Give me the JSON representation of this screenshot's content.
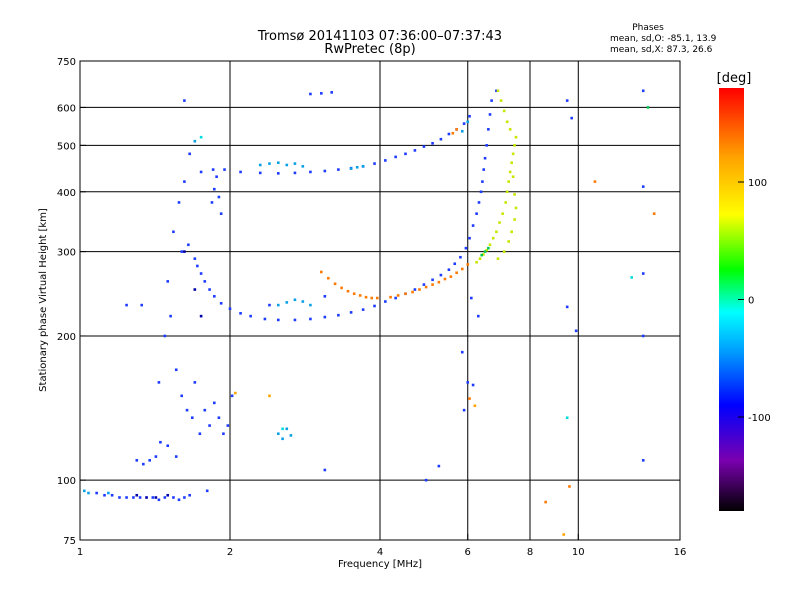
{
  "header": {
    "title_line1": "Tromsø 20141103 07:36:00–07:37:43",
    "title_line2": "RwPretec (8p)",
    "stats_heading": "Phases",
    "stats_o": "mean, sd,O: -85.1, 13.9",
    "stats_x": "mean, sd,X:  87.3, 26.6"
  },
  "chart_data": {
    "type": "scatter",
    "title": "Tromsø 20141103 07:36:00–07:37:43",
    "subtitle": "RwPretec (8p)",
    "xlabel": "Frequency [MHz]",
    "ylabel": "Stationary phase Virtual Height [km]",
    "x_scale": "log",
    "y_scale": "log",
    "xlim": [
      1,
      16
    ],
    "ylim": [
      75,
      750
    ],
    "x_ticks": [
      1,
      2,
      4,
      6,
      8,
      10,
      16
    ],
    "x_tick_labels": [
      "1",
      "2",
      "4",
      "6",
      "8",
      "10",
      "16"
    ],
    "x_gridlines": [
      2,
      4,
      6,
      8,
      10
    ],
    "y_ticks": [
      75,
      100,
      200,
      300,
      400,
      500,
      600,
      750
    ],
    "y_tick_labels": [
      "75",
      "100",
      "200",
      "300",
      "400",
      "500",
      "600",
      "750"
    ],
    "y_gridlines": [
      100,
      200,
      300,
      400,
      500,
      600
    ],
    "grid": true,
    "colorbar": {
      "label": "[deg]",
      "min": -180,
      "max": 180,
      "ticks": [
        100,
        0,
        -100
      ],
      "tick_labels": [
        "100",
        "0",
        "-100"
      ],
      "colors": [
        "#000000",
        "#7a00b0",
        "#0000ff",
        "#00a0ff",
        "#00ffff",
        "#00ff00",
        "#ffff00",
        "#ffa000",
        "#ff0000"
      ]
    },
    "series": [
      {
        "color": "#1e3cff",
        "points": [
          [
            1.08,
            94
          ],
          [
            1.12,
            93
          ],
          [
            1.16,
            93
          ],
          [
            1.2,
            92
          ],
          [
            1.24,
            92
          ],
          [
            1.28,
            92
          ],
          [
            1.32,
            92
          ],
          [
            1.4,
            92
          ],
          [
            1.44,
            91
          ],
          [
            1.48,
            92
          ],
          [
            1.54,
            92
          ],
          [
            1.58,
            91
          ],
          [
            1.62,
            92
          ],
          [
            1.66,
            93
          ],
          [
            1.8,
            95
          ],
          [
            3.1,
            105
          ],
          [
            4.95,
            100
          ],
          [
            5.25,
            107
          ],
          [
            1.6,
            300
          ],
          [
            1.65,
            310
          ],
          [
            1.7,
            290
          ],
          [
            1.72,
            280
          ],
          [
            1.75,
            270
          ],
          [
            1.78,
            260
          ],
          [
            1.82,
            250
          ],
          [
            1.86,
            242
          ],
          [
            1.92,
            234
          ],
          [
            2.0,
            228
          ],
          [
            2.1,
            223
          ],
          [
            2.2,
            220
          ],
          [
            2.35,
            217
          ],
          [
            2.5,
            216
          ],
          [
            2.7,
            216
          ],
          [
            2.9,
            217
          ],
          [
            3.1,
            219
          ],
          [
            3.3,
            221
          ],
          [
            3.5,
            224
          ],
          [
            3.7,
            227
          ],
          [
            3.9,
            231
          ],
          [
            4.1,
            236
          ],
          [
            4.3,
            240
          ],
          [
            4.5,
            245
          ],
          [
            4.7,
            250
          ],
          [
            4.9,
            256
          ],
          [
            5.1,
            262
          ],
          [
            5.3,
            268
          ],
          [
            5.5,
            275
          ],
          [
            5.65,
            283
          ],
          [
            5.8,
            292
          ],
          [
            5.95,
            305
          ],
          [
            6.05,
            320
          ],
          [
            6.15,
            340
          ],
          [
            6.25,
            360
          ],
          [
            6.32,
            380
          ],
          [
            6.38,
            400
          ],
          [
            6.42,
            420
          ],
          [
            6.46,
            445
          ],
          [
            6.5,
            470
          ],
          [
            6.55,
            500
          ],
          [
            6.6,
            540
          ],
          [
            6.65,
            580
          ],
          [
            6.7,
            620
          ],
          [
            1.75,
            440
          ],
          [
            1.85,
            445
          ],
          [
            1.95,
            445
          ],
          [
            2.1,
            440
          ],
          [
            2.3,
            438
          ],
          [
            2.5,
            437
          ],
          [
            2.7,
            438
          ],
          [
            2.9,
            440
          ],
          [
            3.1,
            442
          ],
          [
            3.3,
            445
          ],
          [
            3.5,
            448
          ],
          [
            3.7,
            452
          ],
          [
            3.9,
            458
          ],
          [
            4.1,
            465
          ],
          [
            4.3,
            473
          ],
          [
            4.5,
            480
          ],
          [
            4.7,
            488
          ],
          [
            4.9,
            497
          ],
          [
            5.1,
            505
          ],
          [
            5.3,
            515
          ],
          [
            5.5,
            528
          ],
          [
            5.7,
            540
          ],
          [
            5.9,
            555
          ],
          [
            6.05,
            575
          ],
          [
            1.45,
            120
          ],
          [
            1.48,
            200
          ],
          [
            1.5,
            260
          ],
          [
            1.52,
            220
          ],
          [
            1.54,
            330
          ],
          [
            1.56,
            170
          ],
          [
            1.58,
            380
          ],
          [
            1.6,
            150
          ],
          [
            1.62,
            420
          ],
          [
            1.64,
            140
          ],
          [
            1.66,
            480
          ],
          [
            1.68,
            135
          ],
          [
            1.7,
            160
          ],
          [
            1.74,
            125
          ],
          [
            1.78,
            140
          ],
          [
            1.82,
            130
          ],
          [
            1.86,
            145
          ],
          [
            1.9,
            135
          ],
          [
            1.94,
            125
          ],
          [
            1.98,
            130
          ],
          [
            2.02,
            150
          ],
          [
            1.3,
            110
          ],
          [
            1.34,
            108
          ],
          [
            1.38,
            110
          ],
          [
            1.42,
            112
          ],
          [
            1.5,
            118
          ],
          [
            1.56,
            112
          ],
          [
            1.44,
            160
          ],
          [
            1.84,
            380
          ],
          [
            1.86,
            405
          ],
          [
            1.88,
            430
          ],
          [
            1.9,
            390
          ],
          [
            1.92,
            360
          ],
          [
            1.24,
            232
          ],
          [
            1.33,
            232
          ],
          [
            1.62,
            620
          ],
          [
            2.9,
            640
          ],
          [
            3.05,
            642
          ],
          [
            3.2,
            645
          ],
          [
            6.85,
            650
          ],
          [
            9.5,
            620
          ],
          [
            9.7,
            570
          ],
          [
            13.5,
            650
          ],
          [
            13.5,
            410
          ],
          [
            13.5,
            270
          ],
          [
            13.5,
            200
          ],
          [
            13.5,
            110
          ],
          [
            9.5,
            230
          ],
          [
            9.9,
            205
          ],
          [
            5.85,
            185
          ],
          [
            5.9,
            140
          ],
          [
            6.1,
            240
          ],
          [
            6.3,
            220
          ],
          [
            6.0,
            160
          ],
          [
            6.15,
            158
          ],
          [
            3.1,
            242
          ],
          [
            2.4,
            232
          ]
        ]
      },
      {
        "color": "#0aa0e6",
        "points": [
          [
            1.02,
            95
          ],
          [
            1.04,
            94
          ],
          [
            1.14,
            94
          ],
          [
            2.3,
            455
          ],
          [
            2.4,
            458
          ],
          [
            2.5,
            460
          ],
          [
            2.6,
            455
          ],
          [
            2.7,
            458
          ],
          [
            2.8,
            452
          ],
          [
            2.5,
            125
          ],
          [
            2.55,
            122
          ],
          [
            2.6,
            128
          ],
          [
            2.65,
            124
          ],
          [
            2.5,
            232
          ],
          [
            2.6,
            235
          ],
          [
            2.7,
            238
          ],
          [
            2.8,
            236
          ],
          [
            2.9,
            232
          ],
          [
            3.5,
            447
          ],
          [
            3.6,
            450
          ],
          [
            3.7,
            452
          ],
          [
            1.7,
            510
          ],
          [
            5.85,
            535
          ],
          [
            6.0,
            560
          ]
        ]
      },
      {
        "color": "#ff7a00",
        "points": [
          [
            3.05,
            272
          ],
          [
            3.15,
            264
          ],
          [
            3.25,
            257
          ],
          [
            3.35,
            252
          ],
          [
            3.45,
            248
          ],
          [
            3.55,
            245
          ],
          [
            3.65,
            243
          ],
          [
            3.75,
            241
          ],
          [
            3.85,
            240
          ],
          [
            3.95,
            240
          ],
          [
            4.2,
            241
          ],
          [
            4.35,
            243
          ],
          [
            4.5,
            245
          ],
          [
            4.65,
            247
          ],
          [
            4.8,
            250
          ],
          [
            4.95,
            253
          ],
          [
            5.1,
            256
          ],
          [
            5.25,
            259
          ],
          [
            5.4,
            263
          ],
          [
            5.55,
            266
          ],
          [
            5.7,
            271
          ],
          [
            5.85,
            276
          ],
          [
            6.0,
            282
          ],
          [
            5.6,
            530
          ],
          [
            5.7,
            540
          ],
          [
            6.05,
            148
          ],
          [
            8.6,
            90
          ],
          [
            9.6,
            97
          ],
          [
            10.8,
            420
          ],
          [
            14.2,
            360
          ]
        ]
      },
      {
        "color": "#c8e600",
        "points": [
          [
            6.25,
            285
          ],
          [
            6.35,
            290
          ],
          [
            6.45,
            296
          ],
          [
            6.55,
            302
          ],
          [
            6.65,
            310
          ],
          [
            6.75,
            320
          ],
          [
            6.85,
            330
          ],
          [
            6.95,
            345
          ],
          [
            7.05,
            360
          ],
          [
            7.15,
            380
          ],
          [
            7.2,
            400
          ],
          [
            7.25,
            420
          ],
          [
            7.3,
            440
          ],
          [
            7.35,
            460
          ],
          [
            7.4,
            480
          ],
          [
            7.45,
            500
          ],
          [
            7.5,
            520
          ],
          [
            7.3,
            540
          ],
          [
            7.2,
            560
          ],
          [
            7.1,
            590
          ],
          [
            7.0,
            620
          ],
          [
            6.9,
            650
          ],
          [
            7.4,
            430
          ],
          [
            7.45,
            395
          ],
          [
            7.5,
            370
          ],
          [
            7.45,
            350
          ],
          [
            7.35,
            330
          ],
          [
            7.25,
            315
          ],
          [
            7.1,
            300
          ],
          [
            6.9,
            290
          ]
        ]
      },
      {
        "color": "#ffa500",
        "points": [
          [
            2.05,
            152
          ],
          [
            2.4,
            150
          ],
          [
            6.2,
            143
          ],
          [
            9.35,
            77
          ]
        ]
      },
      {
        "color": "#00c850",
        "points": [
          [
            6.4,
            295
          ],
          [
            6.5,
            300
          ],
          [
            6.6,
            305
          ],
          [
            13.8,
            600
          ]
        ]
      },
      {
        "color": "#0000aa",
        "points": [
          [
            1.3,
            93
          ],
          [
            1.36,
            92
          ],
          [
            1.42,
            92
          ],
          [
            1.5,
            93
          ],
          [
            1.62,
            300
          ],
          [
            1.7,
            250
          ],
          [
            1.75,
            220
          ]
        ]
      },
      {
        "color": "#00dcdc",
        "points": [
          [
            1.75,
            520
          ],
          [
            2.55,
            128
          ],
          [
            9.5,
            135
          ],
          [
            12.8,
            265
          ]
        ]
      }
    ]
  }
}
